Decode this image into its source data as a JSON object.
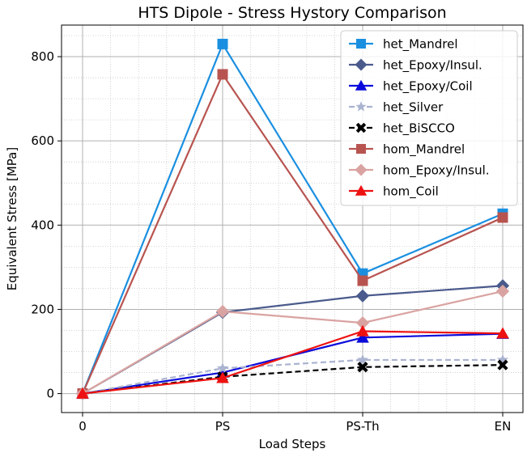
{
  "chart_data": {
    "type": "line",
    "title": "HTS Dipole - Stress Hystory Comparison",
    "xlabel": "Load Steps",
    "ylabel": "Equivalent Stress [MPa]",
    "categories": [
      "0",
      "PS",
      "PS-Th",
      "EN"
    ],
    "ylim": [
      -45,
      875
    ],
    "yticks": [
      0,
      200,
      400,
      600,
      800
    ],
    "grid": true,
    "legend_position": "top-right",
    "series": [
      {
        "name": "het_Mandrel",
        "values": [
          0,
          830,
          285,
          427
        ],
        "color": "#1a8fe0",
        "marker": "square",
        "dashed": false
      },
      {
        "name": "het_Epoxy/Insul.",
        "values": [
          0,
          193,
          232,
          256
        ],
        "color": "#4a5a8c",
        "marker": "diamond",
        "dashed": false
      },
      {
        "name": "het_Epoxy/Coil",
        "values": [
          0,
          50,
          133,
          142
        ],
        "color": "#0a0adc",
        "marker": "triangle",
        "dashed": false
      },
      {
        "name": "het_Silver",
        "values": [
          0,
          60,
          80,
          80
        ],
        "color": "#aab3d0",
        "marker": "star",
        "dashed": true
      },
      {
        "name": "het_BiSCCO",
        "values": [
          0,
          40,
          63,
          68
        ],
        "color": "#000000",
        "marker": "x",
        "dashed": true
      },
      {
        "name": "hom_Mandrel",
        "values": [
          0,
          758,
          268,
          418
        ],
        "color": "#b85450",
        "marker": "square",
        "dashed": false
      },
      {
        "name": "hom_Epoxy/Insul.",
        "values": [
          0,
          195,
          168,
          243
        ],
        "color": "#d9a3a1",
        "marker": "diamond",
        "dashed": false
      },
      {
        "name": "hom_Coil",
        "values": [
          0,
          37,
          148,
          143
        ],
        "color": "#ee1111",
        "marker": "triangle",
        "dashed": false
      }
    ]
  }
}
